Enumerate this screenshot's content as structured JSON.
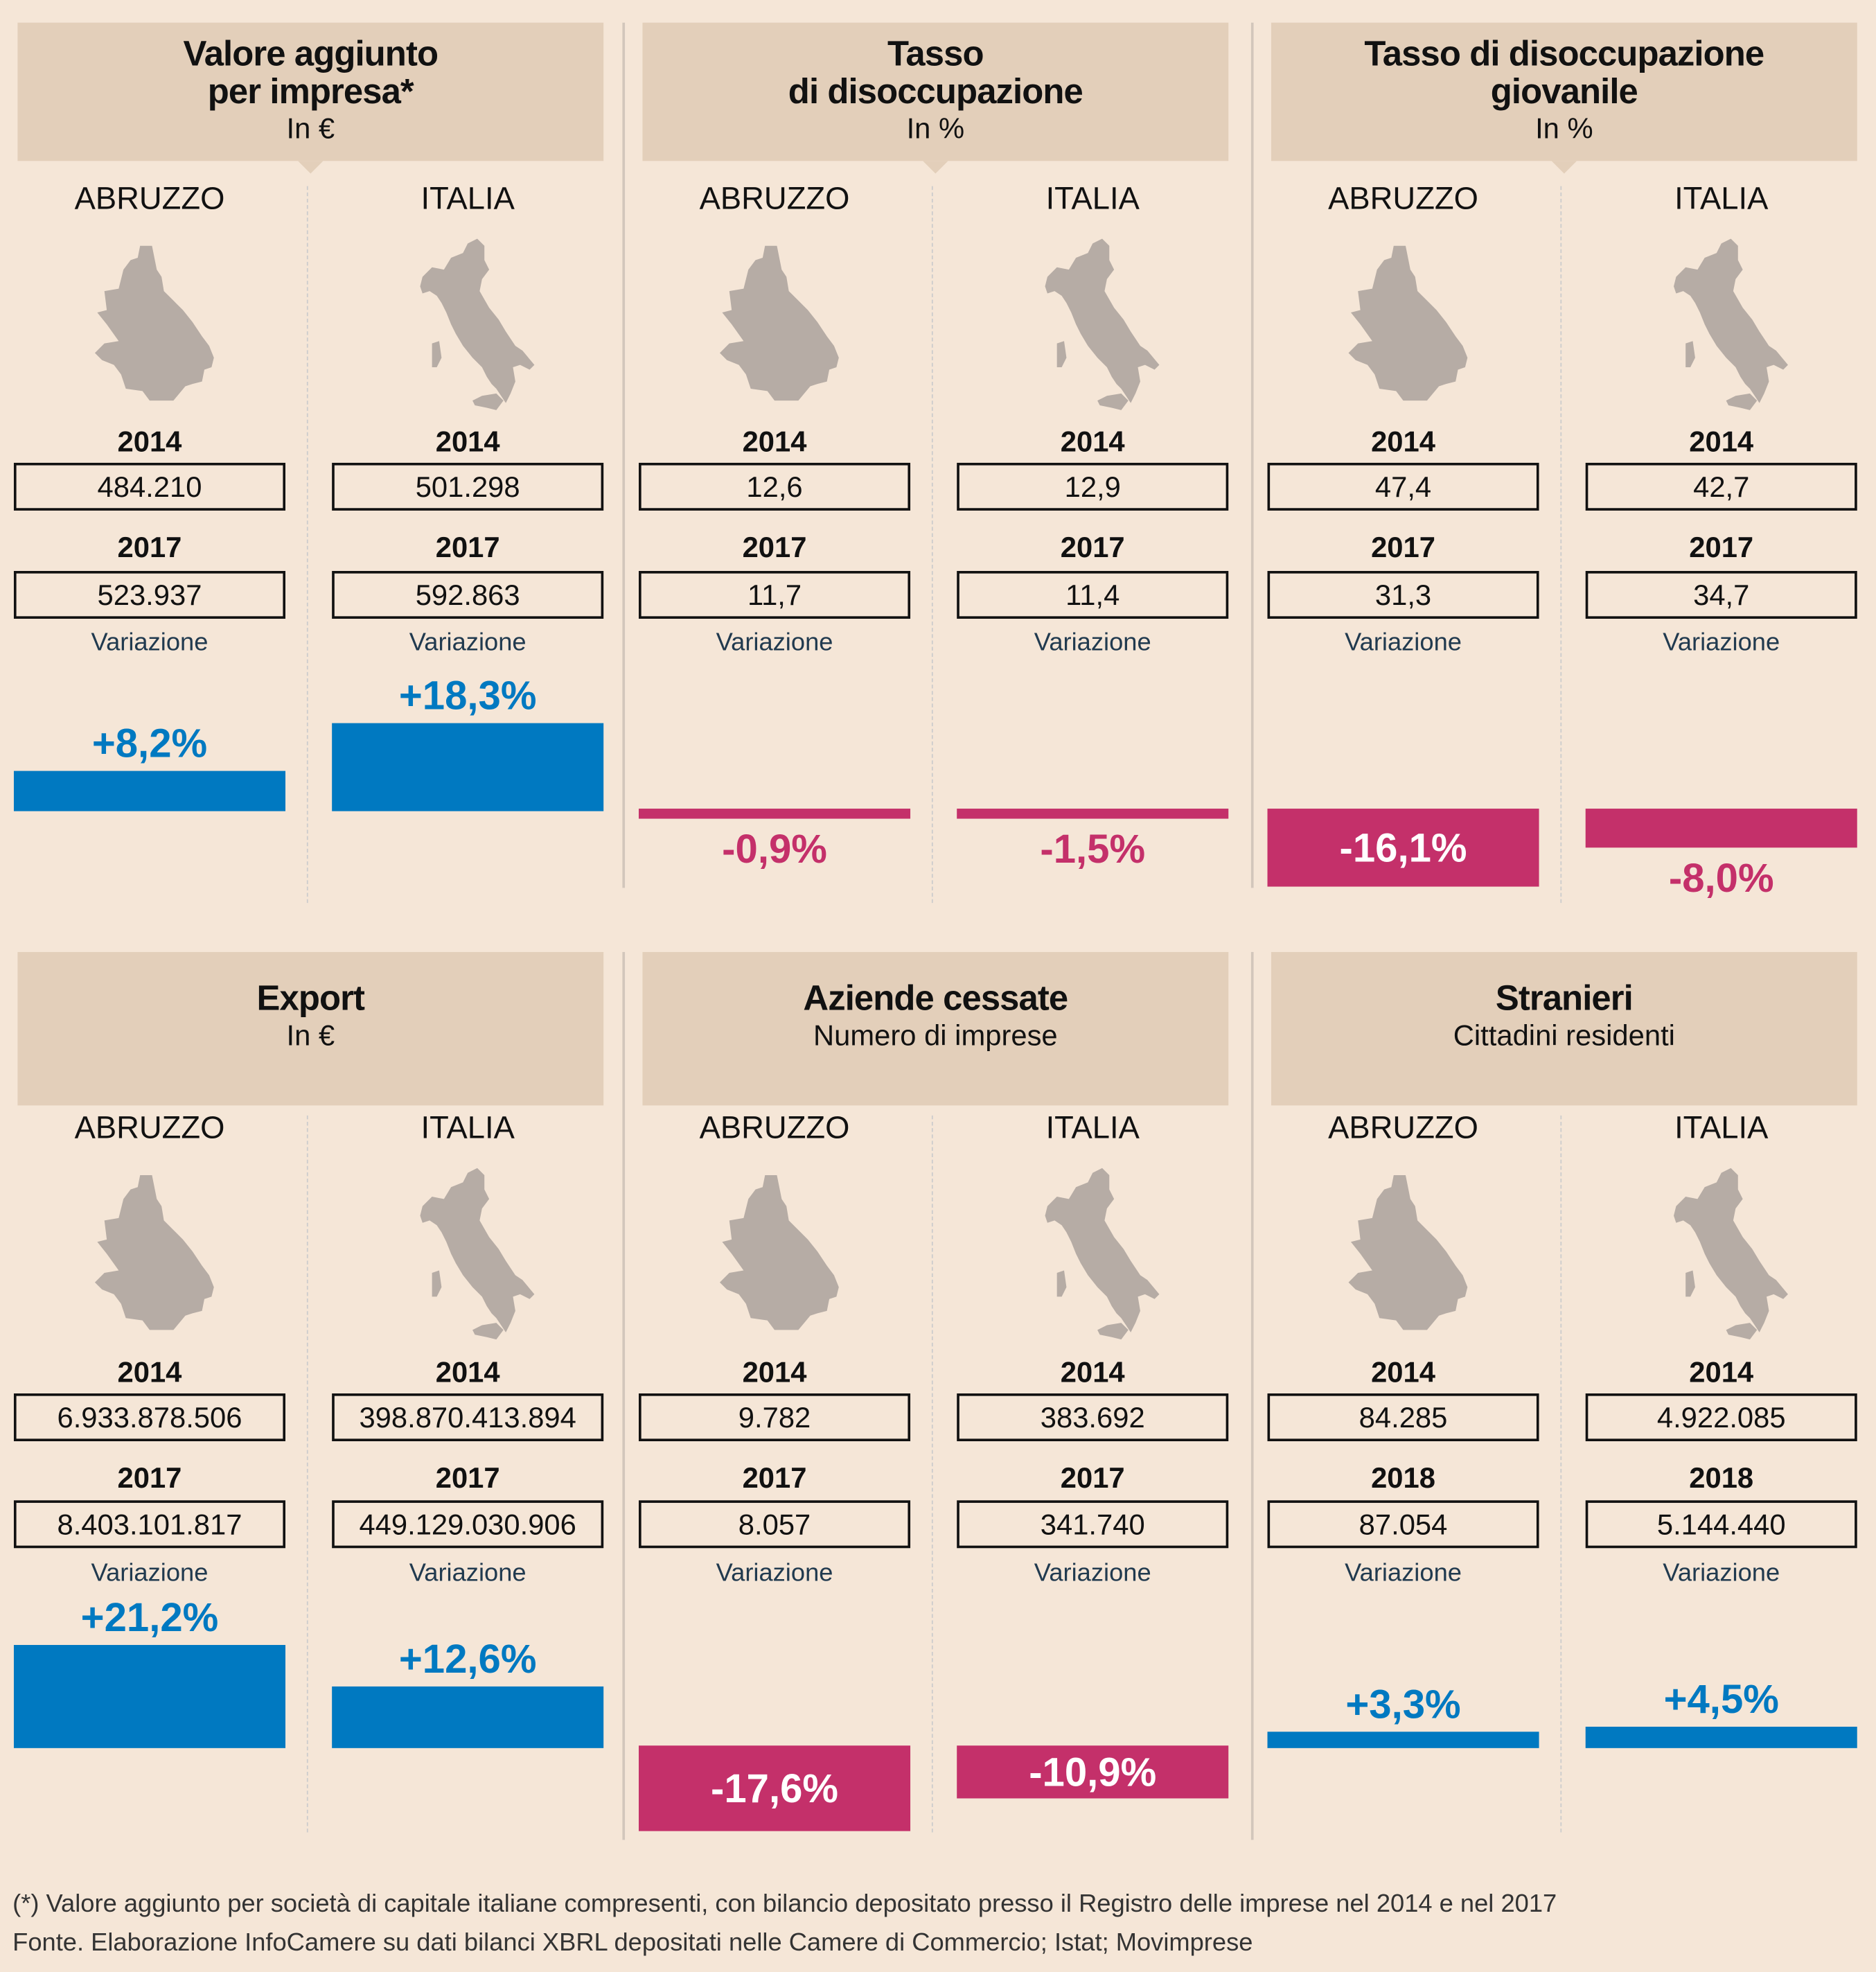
{
  "colors": {
    "positive": "#0079c1",
    "negative": "#c4306a",
    "map": "#b6aca5",
    "header": "#e3cfba"
  },
  "chart_data": [
    {
      "type": "bar",
      "title": "Valore aggiunto per impresa*",
      "subtitle": "In €",
      "categories": [
        "ABRUZZO",
        "ITALIA"
      ],
      "years": [
        "2014",
        "2017"
      ],
      "values_start": [
        "484.210",
        "501.298"
      ],
      "values_end": [
        "523.937",
        "592.863"
      ],
      "variation_label": "Variazione",
      "variation": [
        8.2,
        18.3
      ],
      "variation_text": [
        "+8,2%",
        "+18,3%"
      ]
    },
    {
      "type": "bar",
      "title": "Tasso di disoccupazione",
      "subtitle": "In %",
      "categories": [
        "ABRUZZO",
        "ITALIA"
      ],
      "years": [
        "2014",
        "2017"
      ],
      "values_start": [
        "12,6",
        "12,9"
      ],
      "values_end": [
        "11,7",
        "11,4"
      ],
      "variation_label": "Variazione",
      "variation": [
        -0.9,
        -1.5
      ],
      "variation_text": [
        "-0,9%",
        "-1,5%"
      ]
    },
    {
      "type": "bar",
      "title": "Tasso di disoccupazione giovanile",
      "subtitle": "In %",
      "categories": [
        "ABRUZZO",
        "ITALIA"
      ],
      "years": [
        "2014",
        "2017"
      ],
      "values_start": [
        "47,4",
        "42,7"
      ],
      "values_end": [
        "31,3",
        "34,7"
      ],
      "variation_label": "Variazione",
      "variation": [
        -16.1,
        -8.0
      ],
      "variation_text": [
        "-16,1%",
        "-8,0%"
      ]
    },
    {
      "type": "bar",
      "title": "Export",
      "subtitle": "In €",
      "categories": [
        "ABRUZZO",
        "ITALIA"
      ],
      "years": [
        "2014",
        "2017"
      ],
      "values_start": [
        "6.933.878.506",
        "398.870.413.894"
      ],
      "values_end": [
        "8.403.101.817",
        "449.129.030.906"
      ],
      "variation_label": "Variazione",
      "variation": [
        21.2,
        12.6
      ],
      "variation_text": [
        "+21,2%",
        "+12,6%"
      ]
    },
    {
      "type": "bar",
      "title": "Aziende cessate",
      "subtitle": "Numero di imprese",
      "categories": [
        "ABRUZZO",
        "ITALIA"
      ],
      "years": [
        "2014",
        "2017"
      ],
      "values_start": [
        "9.782",
        "383.692"
      ],
      "values_end": [
        "8.057",
        "341.740"
      ],
      "variation_label": "Variazione",
      "variation": [
        -17.6,
        -10.9
      ],
      "variation_text": [
        "-17,6%",
        "-10,9%"
      ]
    },
    {
      "type": "bar",
      "title": "Stranieri",
      "subtitle": "Cittadini residenti",
      "categories": [
        "ABRUZZO",
        "ITALIA"
      ],
      "years": [
        "2014",
        "2018"
      ],
      "values_start": [
        "84.285",
        "4.922.085"
      ],
      "values_end": [
        "87.054",
        "5.144.440"
      ],
      "variation_label": "Variazione",
      "variation": [
        3.3,
        4.5
      ],
      "variation_text": [
        "+3,3%",
        "+4,5%"
      ]
    }
  ],
  "title_lines": [
    [
      "Valore aggiunto",
      "per impresa*"
    ],
    [
      "Tasso",
      "di disoccupazione"
    ],
    [
      "Tasso di disoccupazione",
      "giovanile"
    ],
    [
      "Export"
    ],
    [
      "Aziende cessate"
    ],
    [
      "Stranieri"
    ]
  ],
  "footer": {
    "note": "(*) Valore aggiunto per società di capitale italiane compresenti, con bilancio depositato presso il Registro delle imprese nel 2014 e nel 2017",
    "source": "Fonte. Elaborazione InfoCamere su dati bilanci XBRL depositati nelle Camere di Commercio; Istat; Movimprese"
  }
}
